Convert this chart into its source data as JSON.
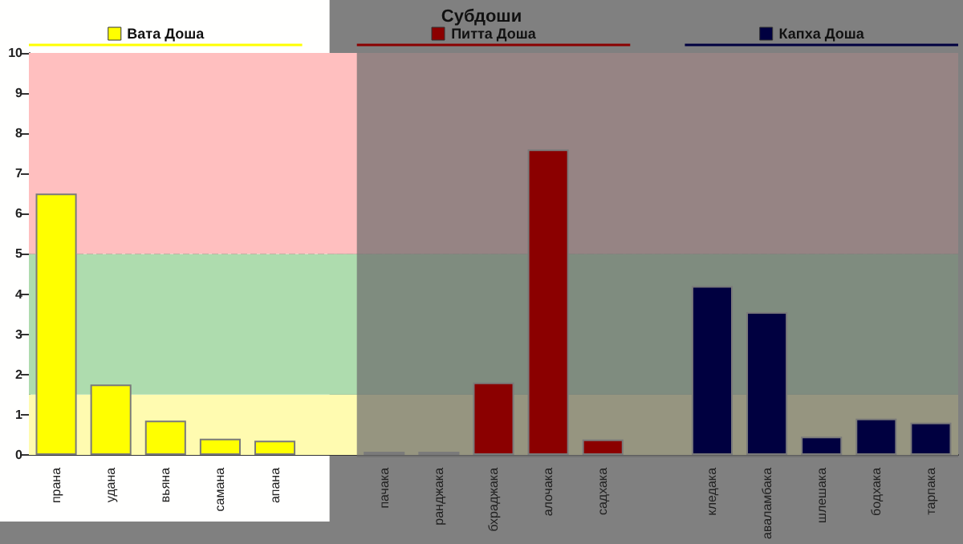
{
  "chart_data": {
    "type": "bar",
    "title": "Субдоши",
    "categories": [
      "прана",
      "удана",
      "вьяна",
      "самана",
      "апана",
      null,
      "пачака",
      "ранджака",
      "бхраджака",
      "алочака",
      "садхака",
      null,
      "кледака",
      "авалaмбака",
      "шлешака",
      "бодхака",
      "тарпака"
    ],
    "series": [
      {
        "name": "Вата Доша",
        "color": "#ffff00",
        "values": [
          6.5,
          1.75,
          0.85,
          0.4,
          0.35,
          null,
          null,
          null,
          null,
          null,
          null,
          null,
          null,
          null,
          null,
          null,
          null
        ]
      },
      {
        "name": "Питта Доша",
        "color": "#8b0000",
        "values": [
          null,
          null,
          null,
          null,
          null,
          null,
          0.08,
          0.08,
          1.8,
          7.6,
          0.38,
          null,
          null,
          null,
          null,
          null,
          null
        ]
      },
      {
        "name": "Капха Доша",
        "color": "#000040",
        "values": [
          null,
          null,
          null,
          null,
          null,
          null,
          null,
          null,
          null,
          null,
          null,
          null,
          4.2,
          3.55,
          0.45,
          0.9,
          0.8
        ]
      }
    ],
    "legend": "top",
    "ylim": [
      0,
      10
    ],
    "yticks": [
      0,
      1,
      2,
      3,
      4,
      5,
      6,
      7,
      8,
      9,
      10
    ],
    "grid": "y",
    "bands": [
      {
        "axis": "y",
        "from": 0,
        "to": 1.5,
        "color": "#fffbb0"
      },
      {
        "axis": "y",
        "from": 1.5,
        "to": 5,
        "color": "#aedcae"
      },
      {
        "axis": "y",
        "from": 5,
        "to": 10,
        "color": "#ffbfbf"
      },
      {
        "axis": "x",
        "from": "пачака",
        "to": "тарпака",
        "color": "#6e6e6e"
      }
    ]
  }
}
